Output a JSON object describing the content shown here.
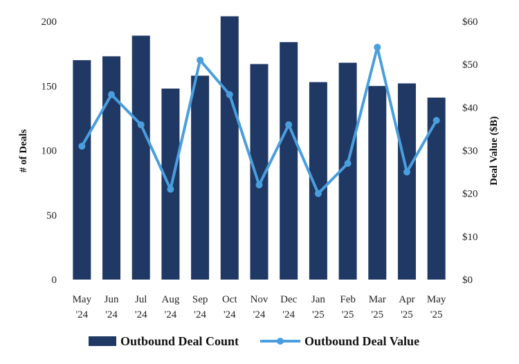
{
  "chart_data": {
    "type": "bar+line",
    "title": "",
    "categories": [
      [
        "May",
        "'24"
      ],
      [
        "Jun",
        "'24"
      ],
      [
        "Jul",
        "'24"
      ],
      [
        "Aug",
        "'24"
      ],
      [
        "Sep",
        "'24"
      ],
      [
        "Oct",
        "'24"
      ],
      [
        "Nov",
        "'24"
      ],
      [
        "Dec",
        "'24"
      ],
      [
        "Jan",
        "'25"
      ],
      [
        "Feb",
        "'25"
      ],
      [
        "Mar",
        "'25"
      ],
      [
        "Apr",
        "'25"
      ],
      [
        "May",
        "'25"
      ]
    ],
    "series": [
      {
        "name": "Outbound Deal Count",
        "type": "bar",
        "axis": "left",
        "color": "#1f3864",
        "values": [
          170,
          173,
          189,
          148,
          158,
          204,
          167,
          184,
          153,
          168,
          150,
          152,
          141
        ]
      },
      {
        "name": "Outbound Deal Value",
        "type": "line",
        "axis": "right",
        "color": "#4a9ede",
        "values": [
          31,
          43,
          36,
          21,
          51,
          43,
          22,
          36,
          20,
          27,
          54,
          25,
          37
        ]
      }
    ],
    "y_left": {
      "label": "# of Deals",
      "range": [
        0,
        200
      ],
      "ticks": [
        "0",
        "50",
        "100",
        "150",
        "200"
      ],
      "tick_values": [
        0,
        50,
        100,
        150,
        200
      ]
    },
    "y_right": {
      "label": "Deal Value ($B)",
      "range": [
        0,
        60
      ],
      "ticks": [
        "$0",
        "$10",
        "$20",
        "$30",
        "$40",
        "$50",
        "$60"
      ],
      "tick_values": [
        0,
        10,
        20,
        30,
        40,
        50,
        60
      ]
    },
    "grid": false,
    "legend": {
      "position": "bottom",
      "items": [
        "Outbound Deal Count",
        "Outbound Deal Value"
      ]
    }
  }
}
